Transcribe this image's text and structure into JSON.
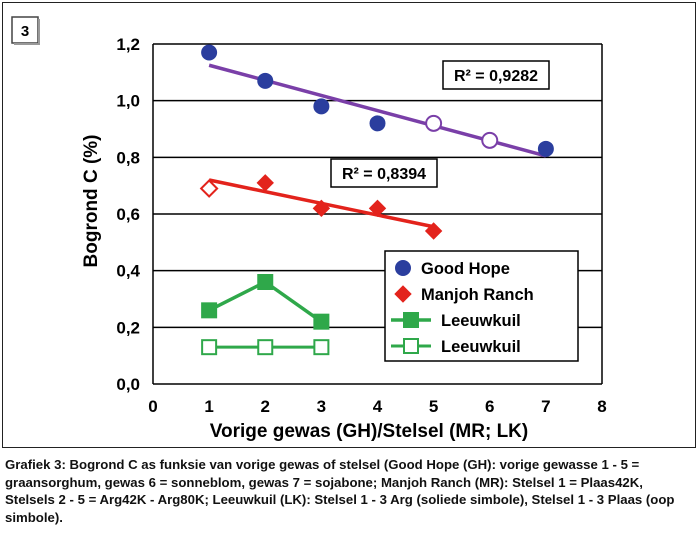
{
  "figure_number": "3",
  "caption": "Grafiek 3: Bogrond C as funksie van vorige gewas of stelsel (Good Hope (GH): vorige gewasse 1 - 5 = graansorghum, gewas 6 = sonneblom, gewas 7 = sojabone; Manjoh Ranch (MR): Stelsel 1 = Plaas42K, Stelsels 2 - 5 = Arg42K - Arg80K; Leeuwkuil (LK): Stelsel 1 - 3 Arg (soliede simbole), Stelsel 1 - 3 Plaas (oop simbole).",
  "colors": {
    "blue": "#2b3e9e",
    "purple": "#7a3fa8",
    "red": "#e3231c",
    "green": "#2fa84a"
  },
  "chart_data": {
    "type": "scatter",
    "xlabel": "Vorige gewas (GH)/Stelsel (MR; LK)",
    "ylabel": "Bogrond C (%)",
    "xlim": [
      0,
      8
    ],
    "ylim": [
      0,
      1.2
    ],
    "x_ticks": [
      "0",
      "1",
      "2",
      "3",
      "4",
      "5",
      "6",
      "7",
      "8"
    ],
    "y_ticks": [
      "0,0",
      "0,2",
      "0,4",
      "0,6",
      "0,8",
      "1,0",
      "1,2"
    ],
    "grid": "horizontal",
    "legend_placement": "bottom-right",
    "series": [
      {
        "name": "Good Hope",
        "marker": "circle",
        "points": [
          {
            "x": 1,
            "y": 1.17,
            "filled": true
          },
          {
            "x": 2,
            "y": 1.07,
            "filled": true
          },
          {
            "x": 3,
            "y": 0.98,
            "filled": true
          },
          {
            "x": 4,
            "y": 0.92,
            "filled": true
          },
          {
            "x": 5,
            "y": 0.92,
            "filled": false
          },
          {
            "x": 6,
            "y": 0.86,
            "filled": false
          },
          {
            "x": 7,
            "y": 0.83,
            "filled": true
          }
        ],
        "trendline": {
          "x": [
            1,
            7
          ],
          "y": [
            1.125,
            0.805
          ],
          "r2": "R² = 0,9282"
        }
      },
      {
        "name": "Manjoh Ranch",
        "marker": "diamond",
        "points": [
          {
            "x": 1,
            "y": 0.69,
            "filled": false
          },
          {
            "x": 2,
            "y": 0.71,
            "filled": true
          },
          {
            "x": 3,
            "y": 0.62,
            "filled": true
          },
          {
            "x": 4,
            "y": 0.62,
            "filled": true
          },
          {
            "x": 5,
            "y": 0.54,
            "filled": true
          }
        ],
        "trendline": {
          "x": [
            1,
            5
          ],
          "y": [
            0.72,
            0.555
          ],
          "r2": "R² = 0,8394"
        }
      },
      {
        "name": "Leeuwkuil",
        "marker": "square",
        "filled": true,
        "connected": true,
        "points": [
          {
            "x": 1,
            "y": 0.26
          },
          {
            "x": 2,
            "y": 0.36
          },
          {
            "x": 3,
            "y": 0.22
          }
        ]
      },
      {
        "name": "Leeuwkuil",
        "marker": "square",
        "filled": false,
        "connected": true,
        "points": [
          {
            "x": 1,
            "y": 0.13
          },
          {
            "x": 2,
            "y": 0.13
          },
          {
            "x": 3,
            "y": 0.13
          }
        ]
      }
    ]
  }
}
